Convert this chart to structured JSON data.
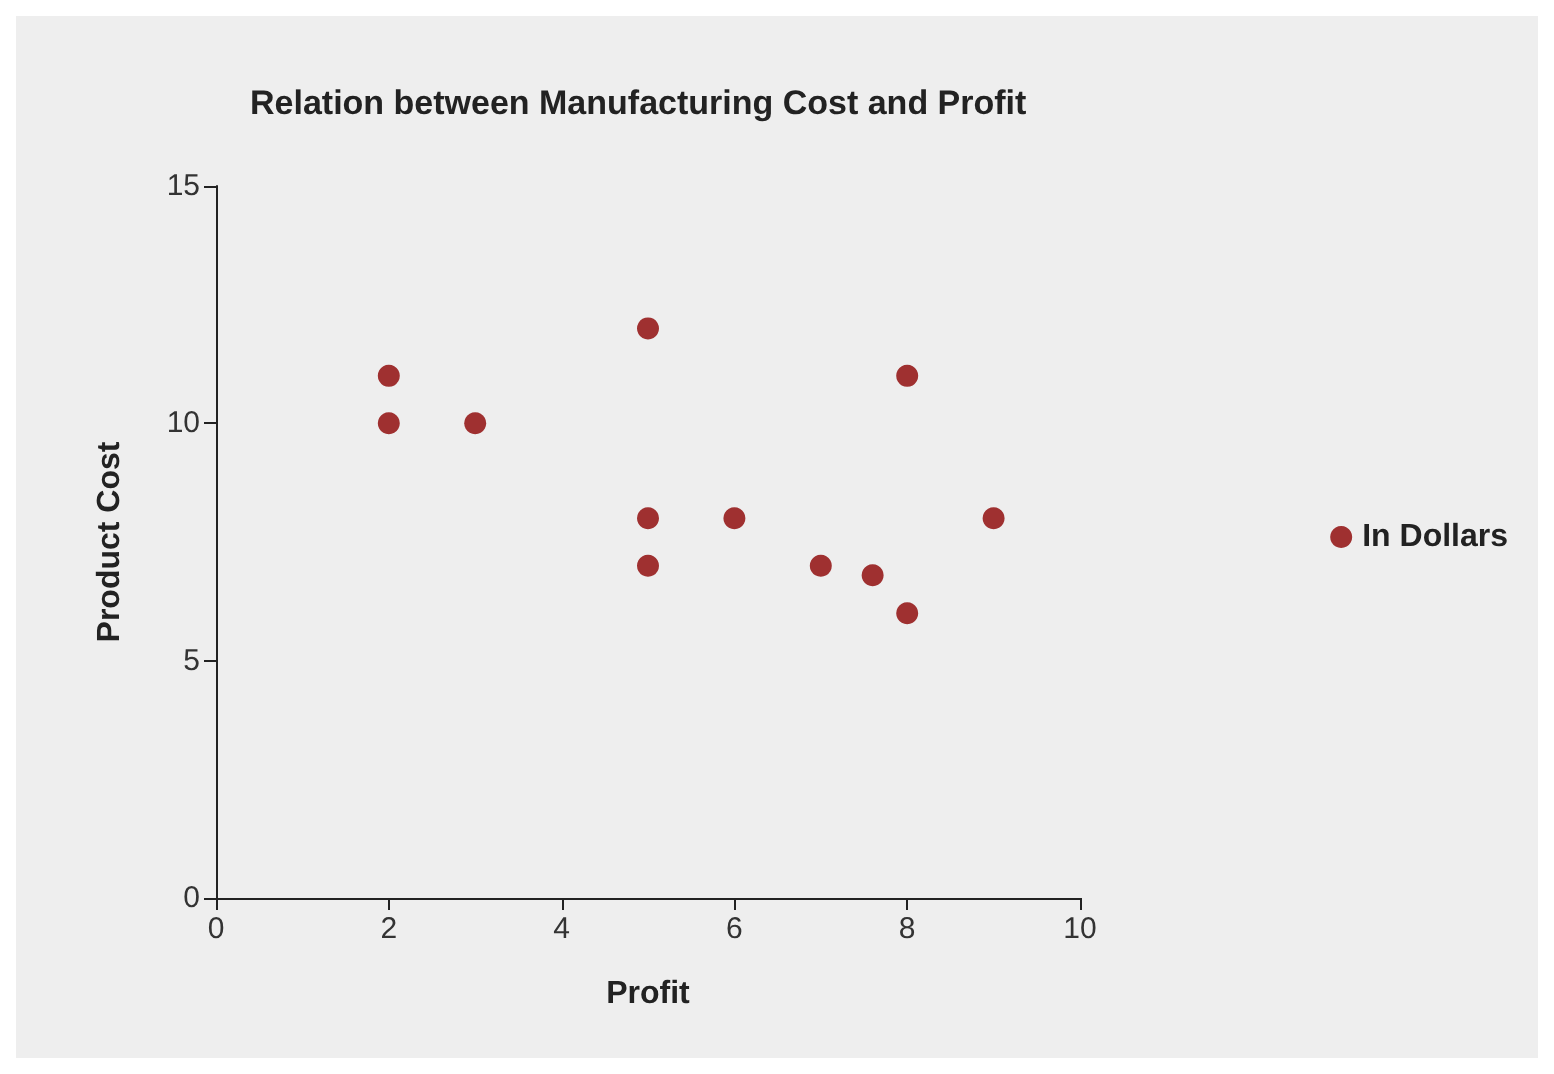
{
  "chart_data": {
    "type": "scatter",
    "title": "Relation between Manufacturing Cost and Profit",
    "xlabel": "Profit",
    "ylabel": "Product Cost",
    "x": [
      2,
      2,
      3,
      5,
      5,
      5,
      6,
      7,
      7.6,
      8,
      8,
      9
    ],
    "series": [
      {
        "name": "In Dollars",
        "color": "#8b0000",
        "values": [
          11,
          10,
          10,
          12,
          8,
          7,
          8,
          7,
          6.8,
          6,
          11,
          8
        ]
      }
    ],
    "xlim": [
      0,
      10
    ],
    "xticks": [
      0,
      2,
      4,
      6,
      8,
      10
    ],
    "ylim": [
      0,
      15
    ],
    "yticks": [
      0,
      5,
      10,
      15
    ],
    "grid": false,
    "legend": "right",
    "marker": "circle"
  }
}
